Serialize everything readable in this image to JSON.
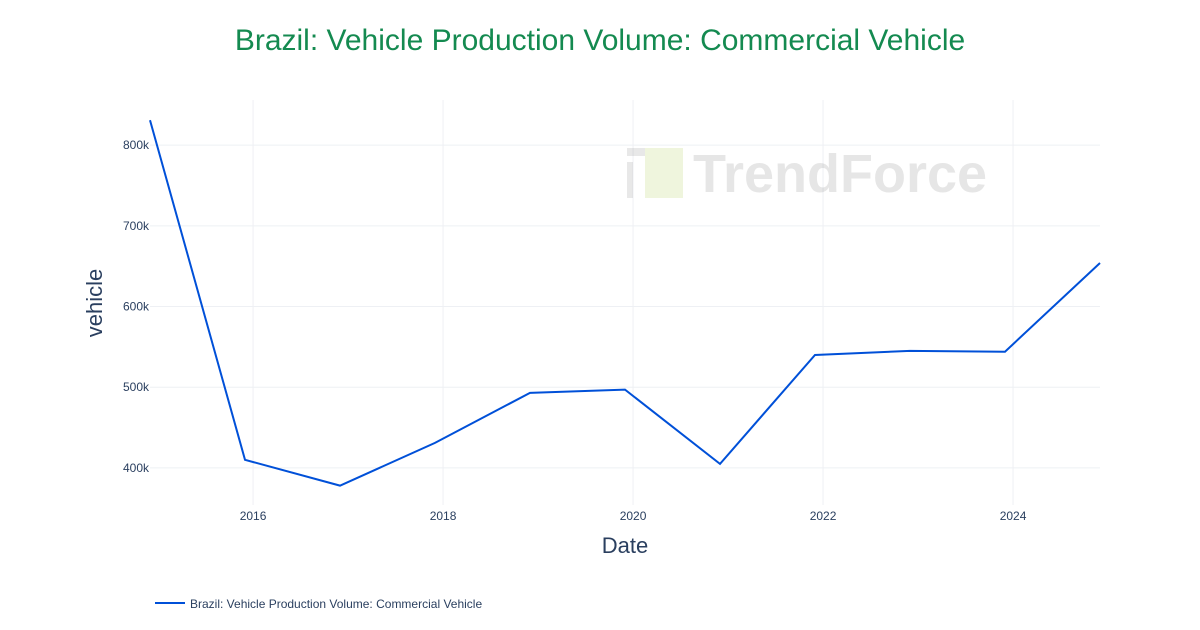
{
  "chart_data": {
    "type": "line",
    "title": "Brazil: Vehicle Production Volume: Commercial Vehicle",
    "xlabel": "Date",
    "ylabel": "vehicle",
    "x_ticks": [
      "2016",
      "2018",
      "2020",
      "2022",
      "2024"
    ],
    "y_ticks": [
      400000,
      500000,
      600000,
      700000,
      800000
    ],
    "y_tick_labels": [
      "400k",
      "500k",
      "600k",
      "700k",
      "800k"
    ],
    "xlim": [
      "2014-12-01",
      "2024-12-01"
    ],
    "ylim": [
      354000,
      856000
    ],
    "grid": true,
    "legend_position": "bottom-left",
    "watermark": "TrendForce",
    "series": [
      {
        "name": "Brazil: Vehicle Production Volume: Commercial Vehicle",
        "color": "#0050d8",
        "x": [
          "2014-12-01",
          "2015-12-01",
          "2016-12-01",
          "2017-12-01",
          "2018-12-01",
          "2019-12-01",
          "2020-12-01",
          "2021-12-01",
          "2022-12-01",
          "2023-12-01",
          "2024-12-01"
        ],
        "values": [
          831000,
          410000,
          378000,
          431000,
          493000,
          497000,
          405000,
          540000,
          545000,
          544000,
          654000
        ]
      }
    ]
  }
}
